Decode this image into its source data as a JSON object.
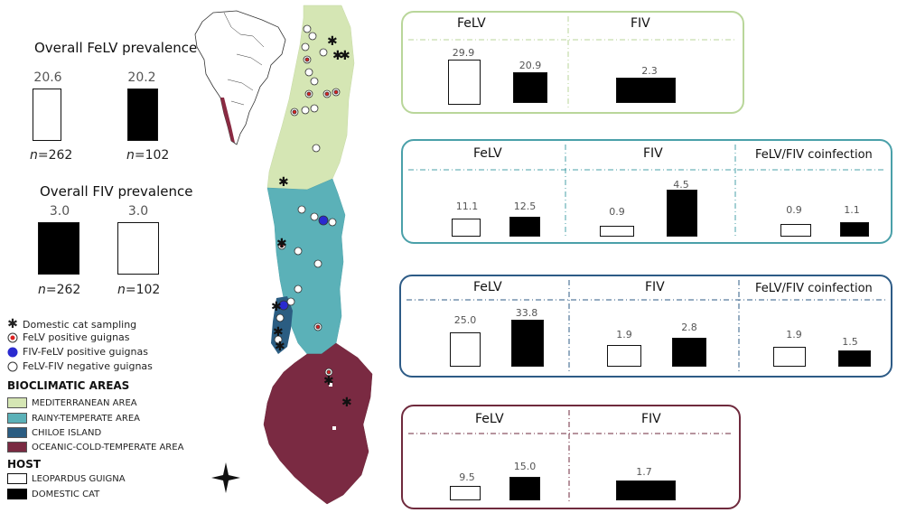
{
  "overall": {
    "felv_title": "Overall FeLV prevalence",
    "felv": [
      {
        "value": "20.6",
        "n": "=262",
        "fill": "white"
      },
      {
        "value": "20.2",
        "n": "=102",
        "fill": "black"
      }
    ],
    "fiv_title": "Overall FIV prevalence",
    "fiv": [
      {
        "value": "3.0",
        "n": "=262",
        "fill": "black"
      },
      {
        "value": "3.0",
        "n": "=102",
        "fill": "white"
      }
    ],
    "n_prefix": "n"
  },
  "legend": {
    "symbols": [
      {
        "icon": "asterisk-icon",
        "label": "Domestic cat sampling"
      },
      {
        "icon": "red-dot-icon",
        "label": "FeLV positive guignas"
      },
      {
        "icon": "blue-dot-icon",
        "label": "FIV-FeLV positive guignas"
      },
      {
        "icon": "white-dot-icon",
        "label": "FeLV-FIV negative guignas"
      }
    ],
    "areas_title": "BIOCLIMATIC AREAS",
    "areas": [
      {
        "label": "MEDITERRANEAN AREA",
        "color": "#d5e6b4"
      },
      {
        "label": "RAINY-TEMPERATE AREA",
        "color": "#5bb1b8"
      },
      {
        "label": "CHILOE ISLAND",
        "color": "#2b5d82"
      },
      {
        "label": "OCEANIC-COLD-TEMPERATE AREA",
        "color": "#7a2a42"
      }
    ],
    "host_title": "HOST",
    "hosts": [
      {
        "label": "LEOPARDUS GUIGNA",
        "fill": "#ffffff"
      },
      {
        "label": "DOMESTIC CAT",
        "fill": "#000000"
      }
    ]
  },
  "panels": [
    {
      "id": "mediterranean",
      "color": "#b9d69a",
      "groups": [
        {
          "title": "FeLV",
          "values": [
            "29.9",
            "20.9"
          ],
          "fills": [
            "white",
            "black"
          ]
        },
        {
          "title": "FIV",
          "values": [
            "2.3"
          ],
          "fills": [
            "black"
          ]
        }
      ]
    },
    {
      "id": "rainy",
      "color": "#4aa0a9",
      "groups": [
        {
          "title": "FeLV",
          "values": [
            "11.1",
            "12.5"
          ],
          "fills": [
            "white",
            "black"
          ]
        },
        {
          "title": "FIV",
          "values": [
            "0.9",
            "4.5"
          ],
          "fills": [
            "white",
            "black"
          ]
        },
        {
          "title": "FeLV/FIV coinfection",
          "values": [
            "0.9",
            "1.1"
          ],
          "fills": [
            "white",
            "black"
          ]
        }
      ]
    },
    {
      "id": "chiloe",
      "color": "#2d5b86",
      "groups": [
        {
          "title": "FeLV",
          "values": [
            "25.0",
            "33.8"
          ],
          "fills": [
            "white",
            "black"
          ]
        },
        {
          "title": "FIV",
          "values": [
            "1.9",
            "2.8"
          ],
          "fills": [
            "white",
            "black"
          ]
        },
        {
          "title": "FeLV/FIV coinfection",
          "values": [
            "1.9",
            "1.5"
          ],
          "fills": [
            "white",
            "black"
          ]
        }
      ]
    },
    {
      "id": "oceanic",
      "color": "#6f2a3d",
      "groups": [
        {
          "title": "FeLV",
          "values": [
            "9.5",
            "15.0"
          ],
          "fills": [
            "white",
            "black"
          ]
        },
        {
          "title": "FIV",
          "values": [
            "1.7"
          ],
          "fills": [
            "black"
          ]
        }
      ]
    }
  ]
}
